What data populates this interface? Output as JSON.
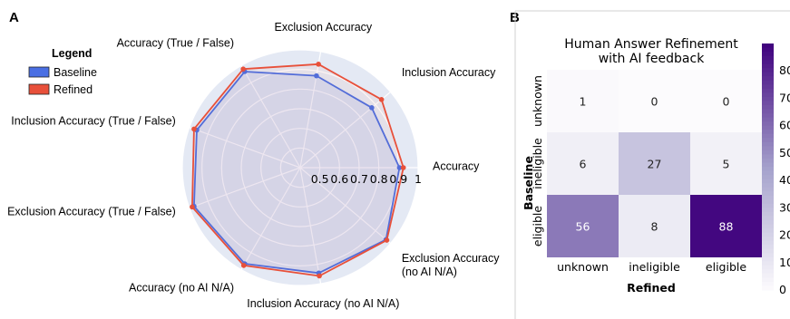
{
  "panels": {
    "a": {
      "letter": "A"
    },
    "b": {
      "letter": "B"
    }
  },
  "chart_data": [
    {
      "type": "radar",
      "legend": {
        "title": "Legend",
        "placement": "top-left"
      },
      "axes": [
        "Accuracy",
        "Inclusion Accuracy",
        "Exclusion Accuracy",
        "Accuracy (True / False)",
        "Inclusion Accuracy (True / False)",
        "Exclusion Accuracy (True / False)",
        "Accuracy (no AI N/A)",
        "Inclusion Accuracy (no AI N/A)",
        "Exclusion Accuracy (no AI N/A)"
      ],
      "axis_label_lines": [
        [
          "Accuracy"
        ],
        [
          "Inclusion Accuracy"
        ],
        [
          "Exclusion Accuracy"
        ],
        [
          "Accuracy (True / False)"
        ],
        [
          "Inclusion Accuracy (True / False)"
        ],
        [
          "Exclusion Accuracy (True / False)"
        ],
        [
          "Accuracy (no AI N/A)"
        ],
        [
          "Inclusion Accuracy (no AI N/A)"
        ],
        [
          "Exclusion Accuracy",
          "(no AI N/A)"
        ]
      ],
      "radial_ticks": [
        "0.5",
        "0.6",
        "0.7",
        "0.8",
        "0.9",
        "1"
      ],
      "radial_tick_values": [
        0.5,
        0.6,
        0.7,
        0.8,
        0.9,
        1.0
      ],
      "rmin": 0.4,
      "rmax": 1.0,
      "grid": true,
      "series": [
        {
          "name": "Baseline",
          "color": "#4a6fe3",
          "values": [
            0.905,
            0.875,
            0.875,
            0.965,
            0.96,
            0.975,
            0.965,
            0.945,
            0.97
          ]
        },
        {
          "name": "Refined",
          "color": "#e8503a",
          "values": [
            0.925,
            0.94,
            0.935,
            0.98,
            0.975,
            0.985,
            0.975,
            0.96,
            0.975
          ]
        }
      ]
    },
    {
      "type": "heatmap",
      "title": [
        "Human Answer Refinement",
        "with AI feedback"
      ],
      "xlabel": "Refined",
      "ylabel": "Baseline",
      "x_categories": [
        "unknown",
        "ineligible",
        "eligible"
      ],
      "y_categories": [
        "unknown",
        "ineligible",
        "eligible"
      ],
      "values": [
        [
          1,
          0,
          0
        ],
        [
          6,
          27,
          5
        ],
        [
          56,
          8,
          88
        ]
      ],
      "colorbar": {
        "ticks": [
          "0",
          "10",
          "20",
          "30",
          "40",
          "50",
          "60",
          "70",
          "80"
        ],
        "max": 90,
        "color_low": "#fcfbfd",
        "color_high": "#3f007d"
      }
    }
  ]
}
